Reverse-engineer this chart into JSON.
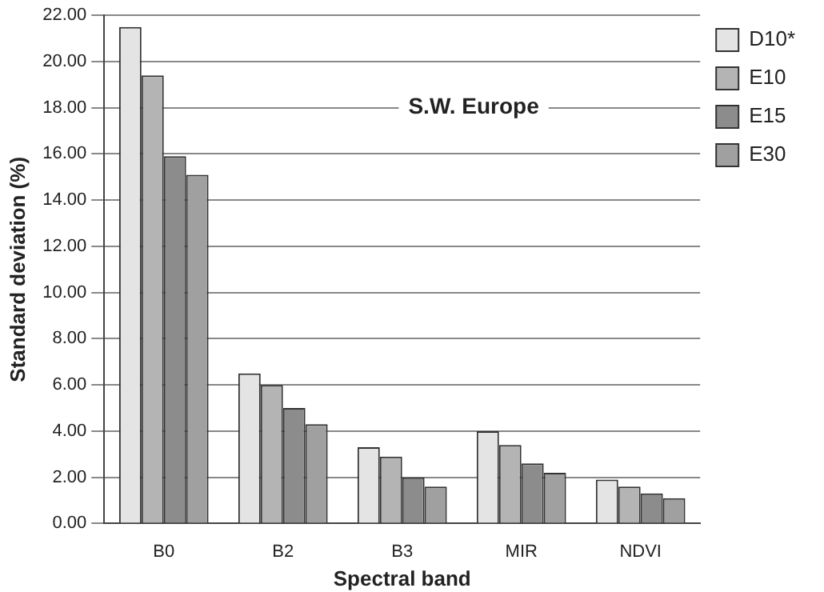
{
  "chart_data": {
    "type": "bar",
    "xlabel": "Spectral band",
    "ylabel": "Standard deviation (%)",
    "categories": [
      "B0",
      "B2",
      "B3",
      "MIR",
      "NDVI"
    ],
    "series": [
      {
        "name": "D10*",
        "color": "#e4e4e4",
        "values": [
          21.5,
          6.5,
          3.3,
          4.0,
          1.9
        ]
      },
      {
        "name": "E10",
        "color": "#b4b4b4",
        "values": [
          19.4,
          6.0,
          2.9,
          3.4,
          1.6
        ]
      },
      {
        "name": "E15",
        "color": "#8c8c8c",
        "values": [
          15.9,
          5.0,
          2.0,
          2.6,
          1.3
        ]
      },
      {
        "name": "E30",
        "color": "#a0a0a0",
        "values": [
          15.1,
          4.3,
          1.6,
          2.2,
          1.1
        ]
      }
    ],
    "ylim": [
      0,
      22
    ],
    "yticks": [
      {
        "value": 0,
        "label": "0.00"
      },
      {
        "value": 2,
        "label": "2.00"
      },
      {
        "value": 4,
        "label": "4.00"
      },
      {
        "value": 6,
        "label": "6.00"
      },
      {
        "value": 8,
        "label": "8.00"
      },
      {
        "value": 10,
        "label": "10.00"
      },
      {
        "value": 12,
        "label": "12.00"
      },
      {
        "value": 14,
        "label": "14.00"
      },
      {
        "value": 16,
        "label": "16.00"
      },
      {
        "value": 18,
        "label": "18.00"
      },
      {
        "value": 20,
        "label": "20.00"
      },
      {
        "value": 22,
        "label": "22.00"
      }
    ],
    "grid": "y",
    "legend": "right",
    "annotations": [
      "S.W. Europe"
    ]
  }
}
